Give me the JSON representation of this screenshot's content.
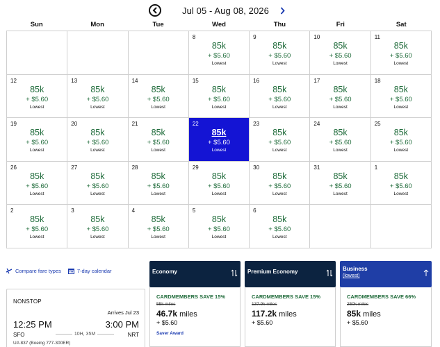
{
  "header": {
    "range": "Jul 05 - Aug 08, 2026"
  },
  "weekdays": [
    "Sun",
    "Mon",
    "Tue",
    "Wed",
    "Thu",
    "Fri",
    "Sat"
  ],
  "cells": [
    {
      "day": ""
    },
    {
      "day": ""
    },
    {
      "day": ""
    },
    {
      "day": "8",
      "miles": "85k",
      "fee": "+ $5.60",
      "tag": "Lowest"
    },
    {
      "day": "9",
      "miles": "85k",
      "fee": "+ $5.60",
      "tag": "Lowest"
    },
    {
      "day": "10",
      "miles": "85k",
      "fee": "+ $5.60",
      "tag": "Lowest"
    },
    {
      "day": "11",
      "miles": "85k",
      "fee": "+ $5.60",
      "tag": "Lowest"
    },
    {
      "day": "12",
      "miles": "85k",
      "fee": "+ $5.60",
      "tag": "Lowest"
    },
    {
      "day": "13",
      "miles": "85k",
      "fee": "+ $5.60",
      "tag": "Lowest"
    },
    {
      "day": "14",
      "miles": "85k",
      "fee": "+ $5.60",
      "tag": "Lowest"
    },
    {
      "day": "15",
      "miles": "85k",
      "fee": "+ $5.60",
      "tag": "Lowest"
    },
    {
      "day": "16",
      "miles": "85k",
      "fee": "+ $5.60",
      "tag": "Lowest"
    },
    {
      "day": "17",
      "miles": "85k",
      "fee": "+ $5.60",
      "tag": "Lowest"
    },
    {
      "day": "18",
      "miles": "85k",
      "fee": "+ $5.60",
      "tag": "Lowest"
    },
    {
      "day": "19",
      "miles": "85k",
      "fee": "+ $5.60",
      "tag": "Lowest"
    },
    {
      "day": "20",
      "miles": "85k",
      "fee": "+ $5.60",
      "tag": "Lowest"
    },
    {
      "day": "21",
      "miles": "85k",
      "fee": "+ $5.60",
      "tag": "Lowest"
    },
    {
      "day": "22",
      "miles": "85k",
      "fee": "+ $5.60",
      "tag": "Lowest",
      "selected": true
    },
    {
      "day": "23",
      "miles": "85k",
      "fee": "+ $5.60",
      "tag": "Lowest"
    },
    {
      "day": "24",
      "miles": "85k",
      "fee": "+ $5.60",
      "tag": "Lowest"
    },
    {
      "day": "25",
      "miles": "85k",
      "fee": "+ $5.60",
      "tag": "Lowest"
    },
    {
      "day": "26",
      "miles": "85k",
      "fee": "+ $5.60",
      "tag": "Lowest"
    },
    {
      "day": "27",
      "miles": "85k",
      "fee": "+ $5.60",
      "tag": "Lowest"
    },
    {
      "day": "28",
      "miles": "85k",
      "fee": "+ $5.60",
      "tag": "Lowest"
    },
    {
      "day": "29",
      "miles": "85k",
      "fee": "+ $5.60",
      "tag": "Lowest"
    },
    {
      "day": "30",
      "miles": "85k",
      "fee": "+ $5.60",
      "tag": "Lowest"
    },
    {
      "day": "31",
      "miles": "85k",
      "fee": "+ $5.60",
      "tag": "Lowest"
    },
    {
      "day": "1",
      "miles": "85k",
      "fee": "+ $5.60",
      "tag": "Lowest"
    },
    {
      "day": "2",
      "miles": "85k",
      "fee": "+ $5.60",
      "tag": "Lowest"
    },
    {
      "day": "3",
      "miles": "85k",
      "fee": "+ $5.60",
      "tag": "Lowest"
    },
    {
      "day": "4",
      "miles": "85k",
      "fee": "+ $5.60",
      "tag": "Lowest"
    },
    {
      "day": "5",
      "miles": "85k",
      "fee": "+ $5.60",
      "tag": "Lowest"
    },
    {
      "day": "6",
      "miles": "85k",
      "fee": "+ $5.60",
      "tag": "Lowest"
    },
    {
      "day": ""
    },
    {
      "day": ""
    }
  ],
  "links": {
    "compare": "Compare fare types",
    "seven_day": "7-day calendar"
  },
  "flight": {
    "stops": "NONSTOP",
    "arrives": "Arrives Jul 23",
    "depart_time": "12:25 PM",
    "arrive_time": "3:00 PM",
    "origin": "SFO",
    "destination": "NRT",
    "duration": "10H, 35M",
    "equipment": "UA 837 (Boeing 777-300ER)"
  },
  "fares": {
    "economy": {
      "name": "Economy",
      "promo": "CARDMEMBERS SAVE 15%",
      "was": "55k miles",
      "miles": "46.7k",
      "miles_unit": "miles",
      "fee": "+ $5.60",
      "award": "Saver Award"
    },
    "premium": {
      "name": "Premium Economy",
      "promo": "CARDMEMBERS SAVE 15%",
      "was": "137.9k miles",
      "miles": "117.2k",
      "miles_unit": "miles",
      "fee": "+ $5.60"
    },
    "business": {
      "name": "Business",
      "sub": "(lowest)",
      "promo": "CARDMEMBERS SAVE 66%",
      "was": "250k miles",
      "miles": "85k",
      "miles_unit": "miles",
      "fee": "+ $5.60"
    }
  },
  "colors": {
    "accent": "#1414d4",
    "navy": "#0c2340",
    "business": "#1f3ea6",
    "green": "#1f6b3a",
    "link": "#1a3ab0"
  }
}
